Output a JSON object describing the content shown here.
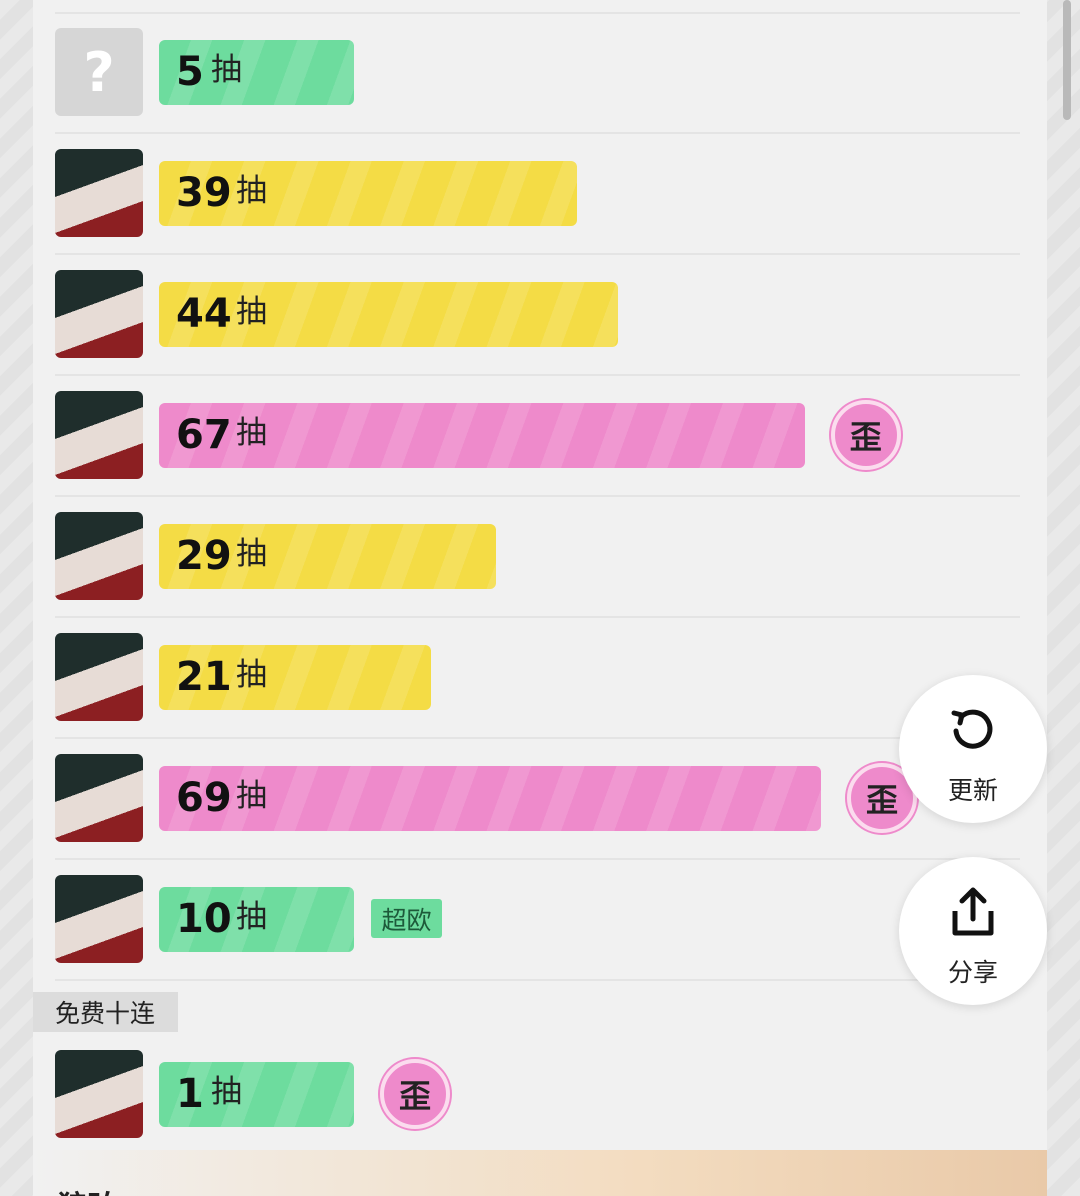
{
  "unit": "抽",
  "rows": [
    {
      "count": 5,
      "color": "#6ddc9e",
      "avatar": "?"
    },
    {
      "count": 39,
      "color": "#f4dc45"
    },
    {
      "count": 44,
      "color": "#f4dc45"
    },
    {
      "count": 67,
      "color": "#ee8acb",
      "tag": "歪"
    },
    {
      "count": 29,
      "color": "#f4dc45"
    },
    {
      "count": 21,
      "color": "#f4dc45"
    },
    {
      "count": 69,
      "color": "#ee8acb",
      "tag": "歪"
    },
    {
      "count": 10,
      "color": "#6ddc9e",
      "badge": "超欧"
    }
  ],
  "free_section": {
    "label": "免费十连",
    "rows": [
      {
        "count": 1,
        "color": "#6ddc9e",
        "tag": "歪"
      }
    ]
  },
  "next_section_title": "狼珀",
  "buttons": [
    {
      "label": "更新"
    },
    {
      "label": "分享"
    }
  ]
}
